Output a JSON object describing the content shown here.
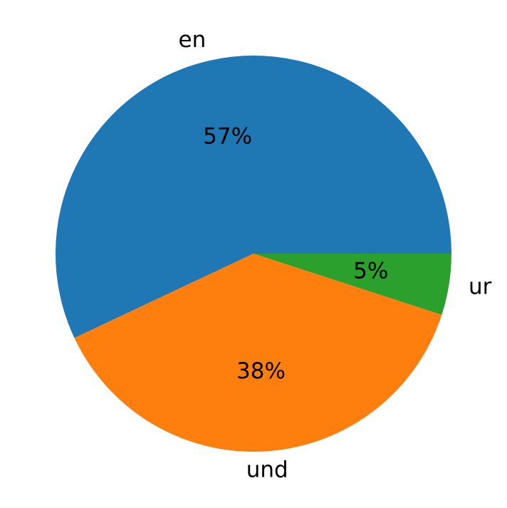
{
  "chart_data": {
    "type": "pie",
    "categories": [
      "en",
      "und",
      "ur"
    ],
    "values": [
      57,
      38,
      5
    ],
    "value_labels": [
      "57%",
      "38%",
      "5%"
    ],
    "colors": [
      "#1f77b4",
      "#ff7f0e",
      "#2ca02c"
    ]
  }
}
